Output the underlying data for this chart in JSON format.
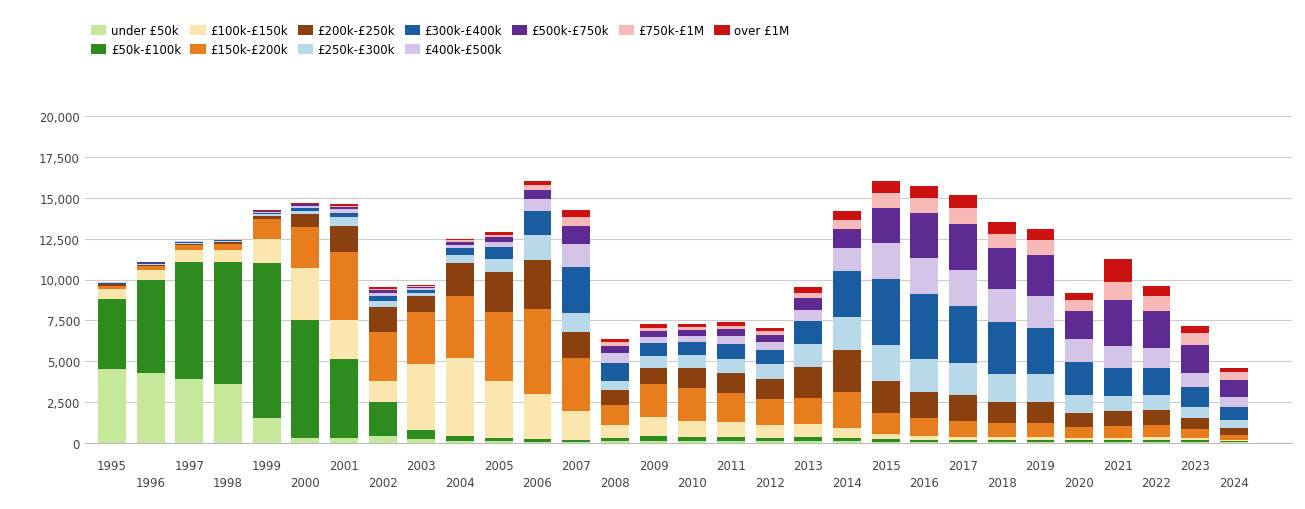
{
  "years": [
    1995,
    1996,
    1997,
    1998,
    1999,
    2000,
    2001,
    2002,
    2003,
    2004,
    2005,
    2006,
    2007,
    2008,
    2009,
    2010,
    2011,
    2012,
    2013,
    2014,
    2015,
    2016,
    2017,
    2018,
    2019,
    2020,
    2021,
    2022,
    2023,
    2024
  ],
  "categories": [
    "under £50k",
    "£50k-£100k",
    "£100k-£150k",
    "£150k-£200k",
    "£200k-£250k",
    "£250k-£300k",
    "£300k-£400k",
    "£400k-£500k",
    "£500k-£750k",
    "£750k-£1M",
    "over £1M"
  ],
  "colors": [
    "#c5e89a",
    "#2e8b1e",
    "#fce6b0",
    "#e87d1e",
    "#8b4010",
    "#b8d9ea",
    "#1a5ca0",
    "#d4c4e8",
    "#5e2b92",
    "#f7b8b8",
    "#cc1111"
  ],
  "data": {
    "under £50k": [
      4500,
      4300,
      3900,
      3600,
      1500,
      300,
      300,
      400,
      200,
      100,
      80,
      60,
      60,
      100,
      100,
      100,
      100,
      100,
      100,
      100,
      60,
      50,
      50,
      50,
      50,
      50,
      50,
      50,
      50,
      30
    ],
    "£50k-£100k": [
      4300,
      5700,
      7200,
      7500,
      9500,
      7200,
      4800,
      2100,
      600,
      300,
      200,
      150,
      100,
      200,
      300,
      250,
      250,
      200,
      250,
      200,
      150,
      100,
      100,
      100,
      100,
      100,
      100,
      100,
      100,
      50
    ],
    "£100k-£150k": [
      600,
      600,
      700,
      700,
      1500,
      3200,
      2400,
      1300,
      4000,
      4800,
      3500,
      2800,
      1800,
      800,
      1200,
      1000,
      900,
      800,
      800,
      600,
      300,
      250,
      200,
      200,
      200,
      150,
      150,
      200,
      150,
      100
    ],
    "£150k-£200k": [
      200,
      200,
      300,
      400,
      1200,
      2500,
      4200,
      3000,
      3200,
      3800,
      4200,
      5200,
      3200,
      1200,
      2000,
      2000,
      1800,
      1600,
      1600,
      2200,
      1300,
      1100,
      950,
      850,
      850,
      650,
      750,
      750,
      550,
      320
    ],
    "£200k-£250k": [
      100,
      100,
      100,
      100,
      200,
      800,
      1600,
      1500,
      1000,
      2000,
      2500,
      3000,
      1600,
      900,
      1000,
      1200,
      1200,
      1200,
      1900,
      2600,
      2000,
      1600,
      1600,
      1300,
      1300,
      900,
      900,
      900,
      650,
      420
    ],
    "£250k-£300k": [
      50,
      50,
      50,
      50,
      100,
      200,
      500,
      400,
      200,
      500,
      800,
      1500,
      1200,
      600,
      700,
      800,
      900,
      900,
      1400,
      2000,
      2200,
      2000,
      2000,
      1700,
      1700,
      1100,
      900,
      900,
      700,
      450
    ],
    "£300k-£400k": [
      50,
      50,
      50,
      50,
      100,
      200,
      300,
      300,
      150,
      400,
      700,
      1500,
      2800,
      1100,
      800,
      800,
      900,
      900,
      1400,
      2800,
      4000,
      4000,
      3500,
      3200,
      2800,
      2000,
      1700,
      1700,
      1200,
      800
    ],
    "£400k-£500k": [
      30,
      30,
      30,
      30,
      50,
      100,
      200,
      200,
      100,
      200,
      300,
      700,
      1400,
      600,
      400,
      400,
      500,
      500,
      700,
      1400,
      2200,
      2200,
      2200,
      2000,
      2000,
      1400,
      1400,
      1200,
      900,
      600
    ],
    "£500k-£750k": [
      20,
      20,
      20,
      20,
      50,
      100,
      150,
      150,
      100,
      200,
      300,
      600,
      1100,
      450,
      350,
      350,
      400,
      400,
      700,
      1200,
      2200,
      2800,
      2800,
      2500,
      2500,
      1700,
      2800,
      2300,
      1700,
      1100
    ],
    "£750k-£1M": [
      10,
      10,
      10,
      10,
      20,
      50,
      80,
      80,
      50,
      100,
      150,
      300,
      550,
      200,
      200,
      180,
      220,
      220,
      350,
      550,
      900,
      900,
      1000,
      900,
      900,
      700,
      1100,
      900,
      700,
      450
    ],
    "over £1M": [
      10,
      10,
      10,
      10,
      20,
      50,
      80,
      80,
      50,
      100,
      150,
      250,
      450,
      200,
      200,
      180,
      220,
      220,
      350,
      550,
      700,
      700,
      800,
      700,
      700,
      450,
      1400,
      600,
      450,
      250
    ]
  },
  "ylim": [
    0,
    20000
  ],
  "yticks": [
    0,
    2500,
    5000,
    7500,
    10000,
    12500,
    15000,
    17500,
    20000
  ],
  "bar_width": 0.72,
  "background_color": "#ffffff",
  "grid_color": "#cccccc"
}
